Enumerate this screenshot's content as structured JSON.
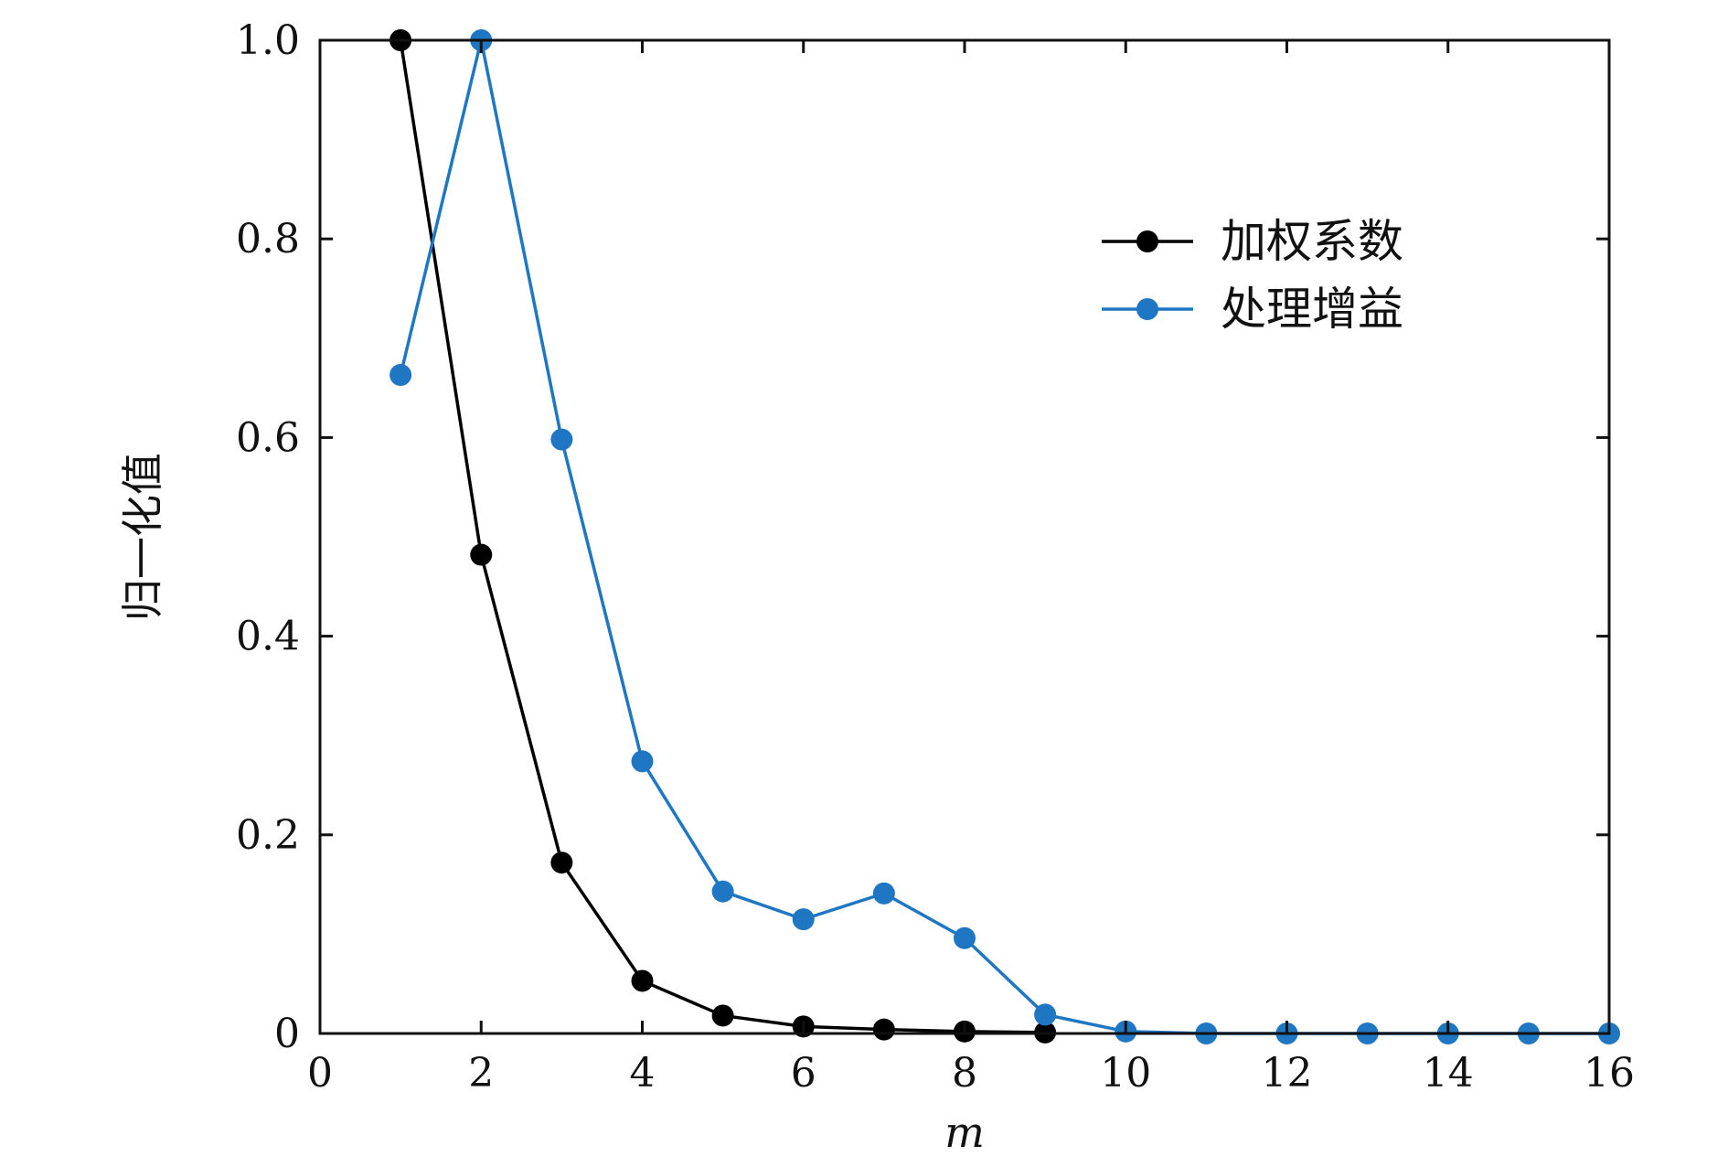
{
  "chart_data": {
    "type": "line",
    "xlabel": "m",
    "ylabel": "归一化值",
    "xlim": [
      0,
      16
    ],
    "ylim": [
      0,
      1.0
    ],
    "xticks": [
      0,
      2,
      4,
      6,
      8,
      10,
      12,
      14,
      16
    ],
    "xtick_labels": [
      "0",
      "2",
      "4",
      "6",
      "8",
      "10",
      "12",
      "14",
      "16"
    ],
    "yticks": [
      0,
      0.2,
      0.4,
      0.6,
      0.8,
      1.0
    ],
    "ytick_labels": [
      "0",
      "0.2",
      "0.4",
      "0.6",
      "0.8",
      "1.0"
    ],
    "grid": false,
    "legend_position": "top-right",
    "series": [
      {
        "name": "加权系数",
        "color": "#000000",
        "x": [
          1,
          2,
          3,
          4,
          5,
          6,
          7,
          8,
          9
        ],
        "y": [
          1.0,
          0.482,
          0.172,
          0.053,
          0.018,
          0.007,
          0.004,
          0.002,
          0.001
        ]
      },
      {
        "name": "处理增益",
        "color": "#1f77c4",
        "x": [
          1,
          2,
          3,
          4,
          5,
          6,
          7,
          8,
          9,
          10,
          11,
          12,
          13,
          14,
          15,
          16
        ],
        "y": [
          0.663,
          1.0,
          0.598,
          0.274,
          0.143,
          0.115,
          0.141,
          0.096,
          0.019,
          0.002,
          0.0,
          0.0,
          0.0,
          0.0,
          0.0,
          0.0
        ]
      }
    ]
  }
}
